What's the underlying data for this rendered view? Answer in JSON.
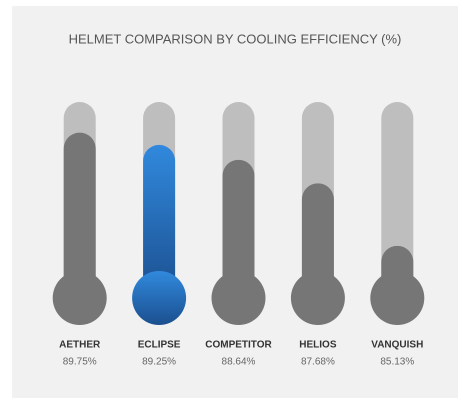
{
  "chart_data": {
    "type": "thermometer",
    "title": "HELMET COMPARISON BY COOLING EFFICIENCY (%)",
    "categories": [
      "AETHER",
      "ECLIPSE",
      "COMPETITOR",
      "HELIOS",
      "VANQUISH"
    ],
    "values": [
      89.75,
      89.25,
      88.64,
      87.68,
      85.13
    ],
    "value_labels": [
      "89.75%",
      "89.25%",
      "88.64%",
      "87.68%",
      "85.13%"
    ],
    "colors": [
      "#767676",
      "#2b7bd0",
      "#767676",
      "#767676",
      "#767676"
    ],
    "track_color": "#bebebe",
    "ylim": [
      83,
      91
    ]
  }
}
